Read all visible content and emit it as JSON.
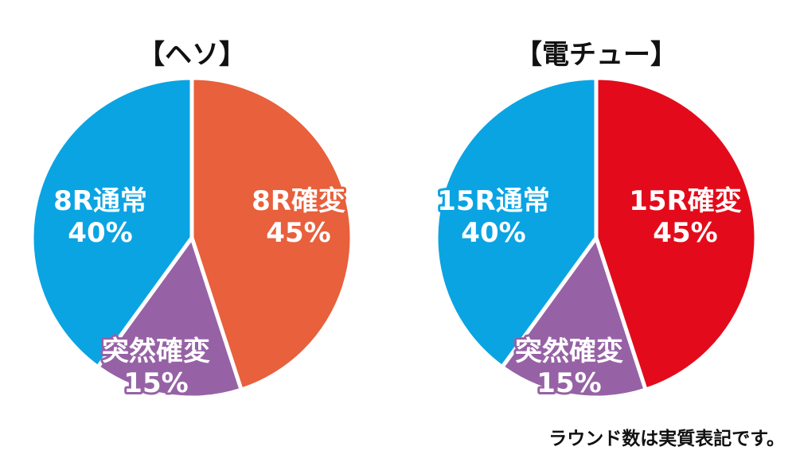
{
  "colors": {
    "blue": "#0aa4e3",
    "orange": "#e8603c",
    "red": "#e30b1b",
    "purple": "#9662a5",
    "divider": "#ffffff"
  },
  "chart_data": [
    {
      "type": "pie",
      "title": "【ヘソ】",
      "slices": [
        {
          "line1": "8R確変",
          "line2": "45%",
          "value": 45,
          "color": "#e8603c"
        },
        {
          "line1": "突然確変",
          "line2": "15%",
          "value": 15,
          "color": "#9662a5"
        },
        {
          "line1": "8R通常",
          "line2": "40%",
          "value": 40,
          "color": "#0aa4e3"
        }
      ]
    },
    {
      "type": "pie",
      "title": "【電チュー】",
      "slices": [
        {
          "line1": "15R確変",
          "line2": "45%",
          "value": 45,
          "color": "#e30b1b"
        },
        {
          "line1": "突然確変",
          "line2": "15%",
          "value": 15,
          "color": "#9662a5"
        },
        {
          "line1": "15R通常",
          "line2": "40%",
          "value": 40,
          "color": "#0aa4e3"
        }
      ]
    }
  ],
  "footnote": "ラウンド数は実質表記です。"
}
